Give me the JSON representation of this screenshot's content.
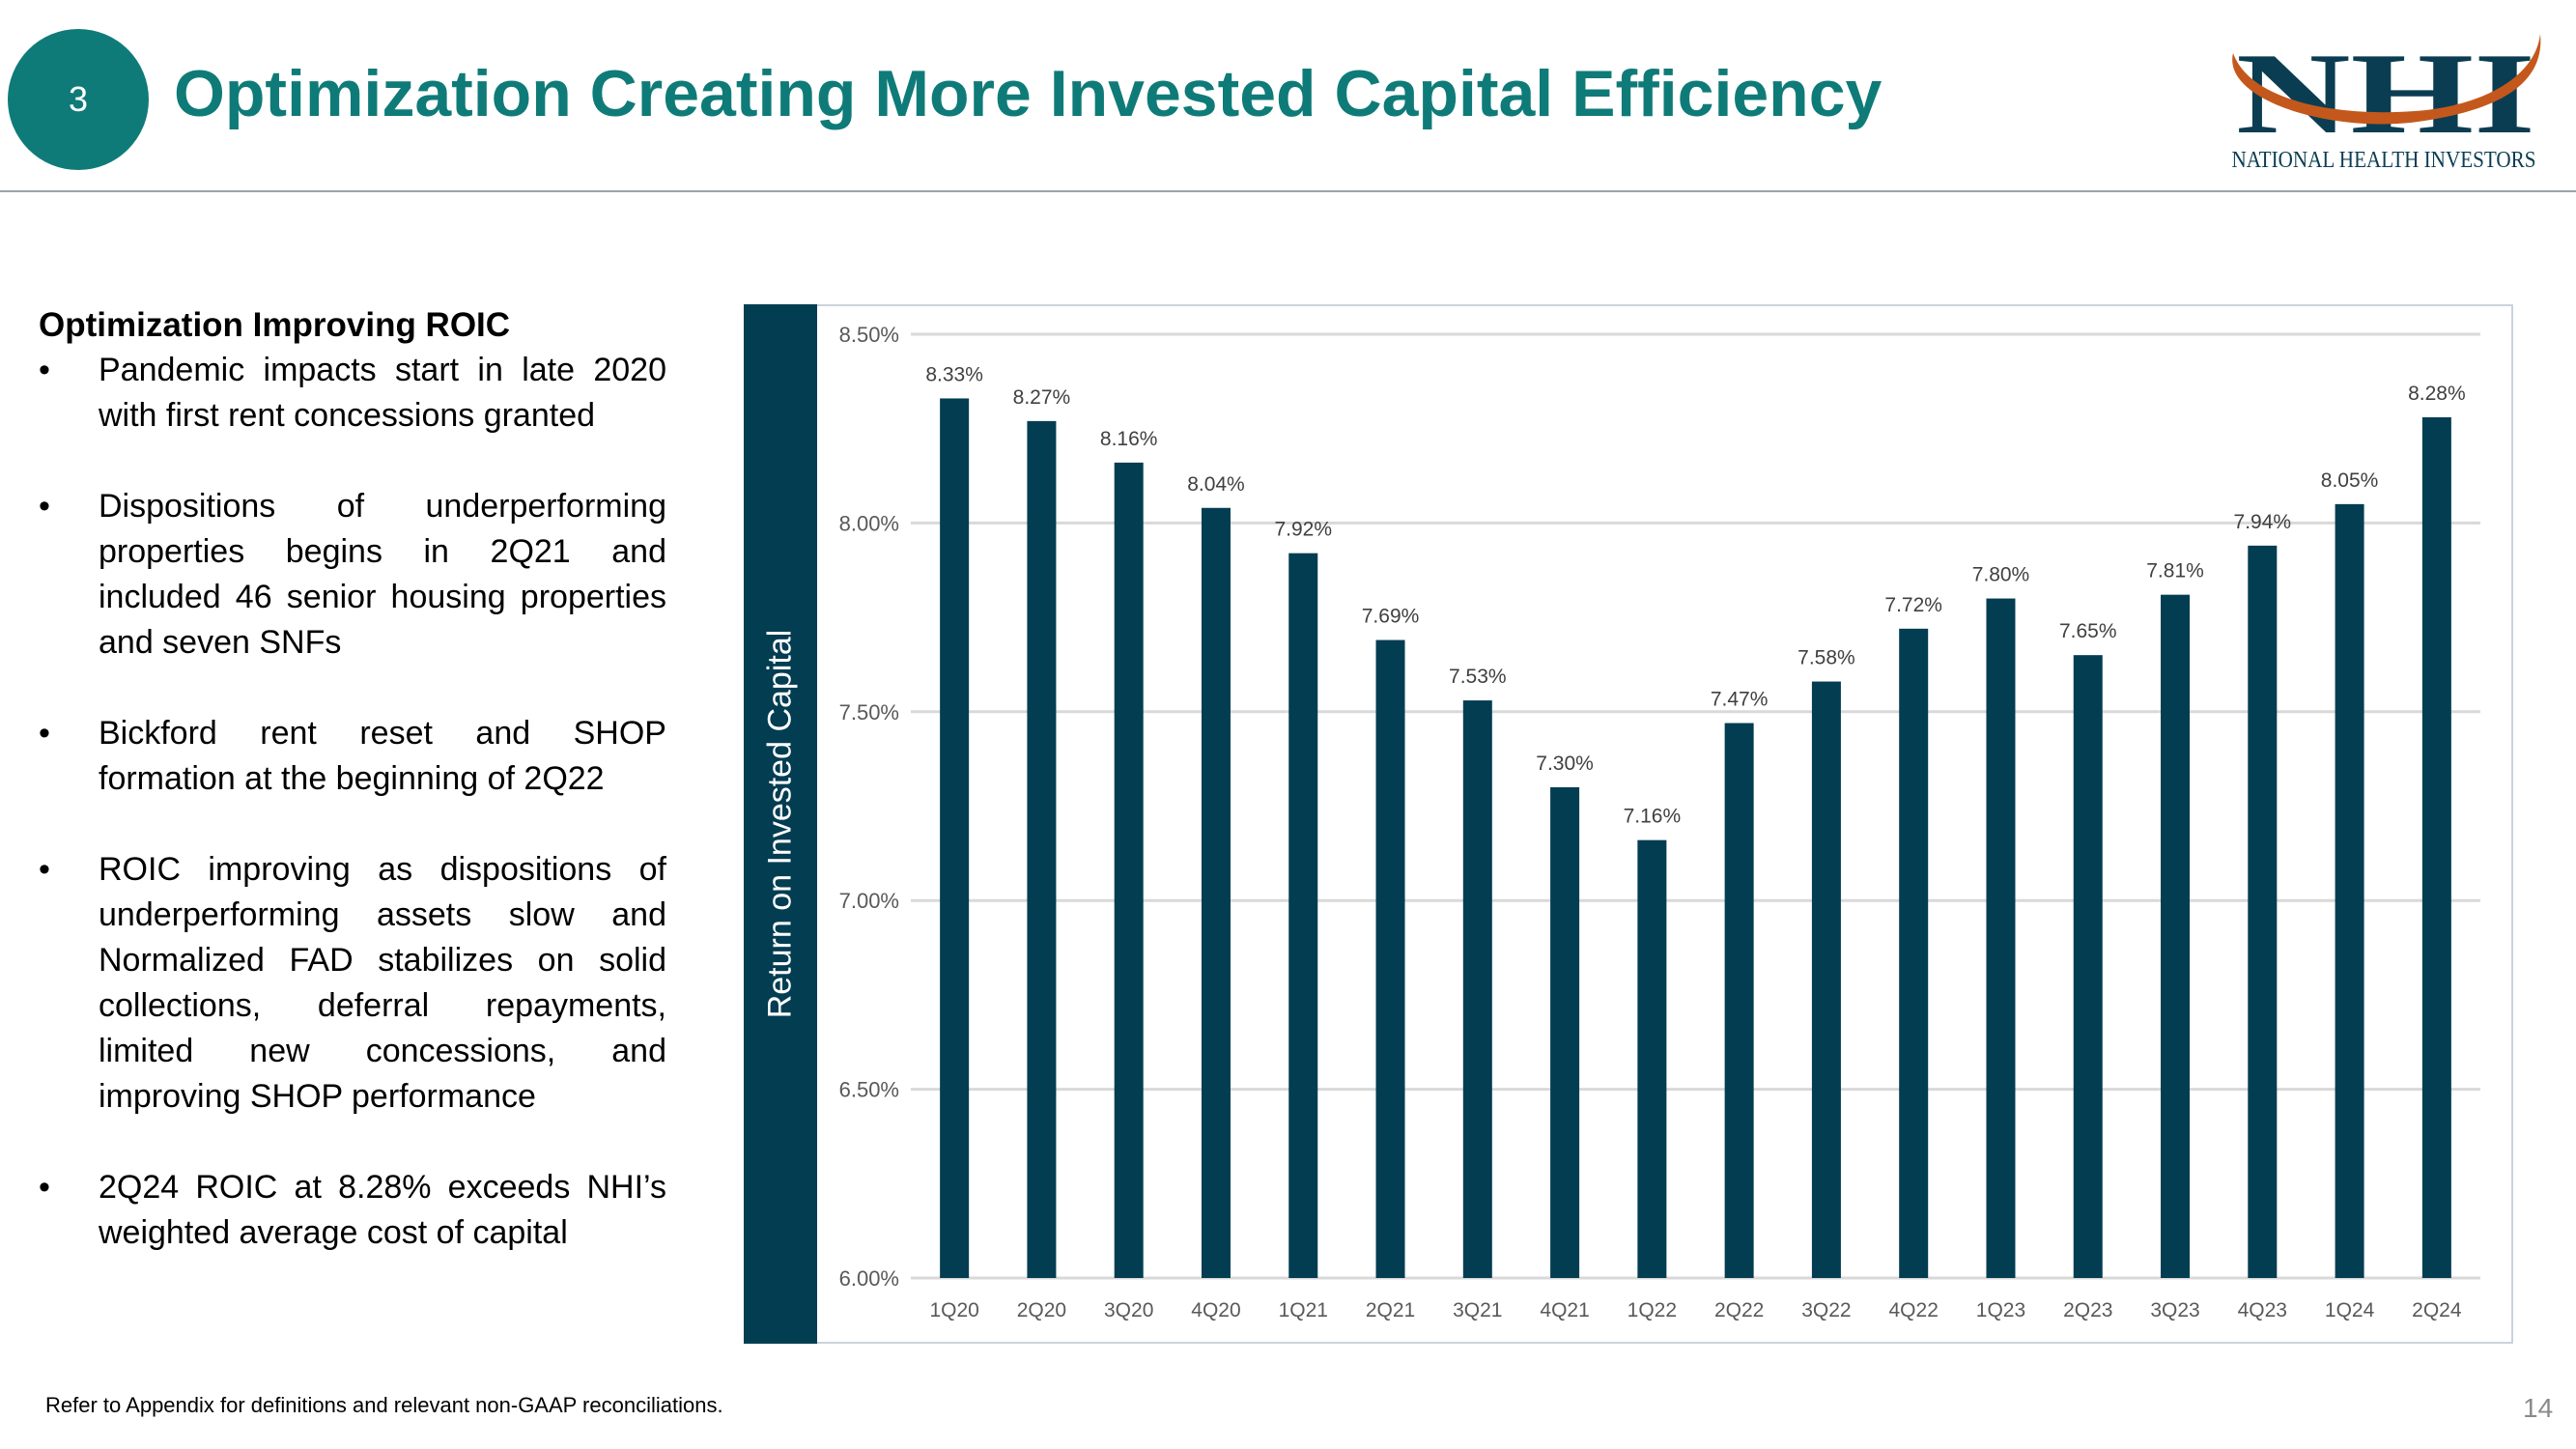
{
  "header": {
    "slide_number": "3",
    "title": "Optimization Creating More Invested Capital Efficiency",
    "logo_text": "NHI",
    "logo_subtext": "NATIONAL HEALTH INVESTORS",
    "logo_colors": {
      "navy": "#0b3d52",
      "orange": "#c4581c"
    }
  },
  "left_panel": {
    "heading": "Optimization Improving ROIC",
    "bullets": [
      "Pandemic impacts start in late 2020 with first rent concessions granted",
      "Dispositions of underperforming properties begins in 2Q21 and included 46 senior housing properties and seven SNFs",
      "Bickford rent reset and SHOP formation at the beginning of 2Q22",
      "ROIC improving as dispositions of underperforming assets slow and Normalized FAD stabilizes on solid collections, deferral repayments, limited new concessions, and improving SHOP performance",
      "2Q24 ROIC at 8.28% exceeds NHI’s weighted average cost of capital"
    ]
  },
  "chart_data": {
    "type": "bar",
    "ylabel": "Return on Invested Capital",
    "xlabel": "",
    "categories": [
      "1Q20",
      "2Q20",
      "3Q20",
      "4Q20",
      "1Q21",
      "2Q21",
      "3Q21",
      "4Q21",
      "1Q22",
      "2Q22",
      "3Q22",
      "4Q22",
      "1Q23",
      "2Q23",
      "3Q23",
      "4Q23",
      "1Q24",
      "2Q24"
    ],
    "values": [
      8.33,
      8.27,
      8.16,
      8.04,
      7.92,
      7.69,
      7.53,
      7.3,
      7.16,
      7.47,
      7.58,
      7.72,
      7.8,
      7.65,
      7.81,
      7.94,
      8.05,
      8.28
    ],
    "data_labels": [
      "8.33%",
      "8.27%",
      "8.16%",
      "8.04%",
      "7.92%",
      "7.69%",
      "7.53%",
      "7.30%",
      "7.16%",
      "7.47%",
      "7.58%",
      "7.72%",
      "7.80%",
      "7.65%",
      "7.81%",
      "7.94%",
      "8.05%",
      "8.28%"
    ],
    "ylim": [
      6.0,
      8.5
    ],
    "yticks": [
      "6.00%",
      "6.50%",
      "7.00%",
      "7.50%",
      "8.00%",
      "8.50%"
    ],
    "ytick_values": [
      6.0,
      6.5,
      7.0,
      7.5,
      8.0,
      8.5
    ],
    "grid": true,
    "bar_color": "#033d52"
  },
  "footer": {
    "note": "Refer to Appendix for definitions and relevant non-GAAP reconciliations.",
    "page_number": "14"
  }
}
